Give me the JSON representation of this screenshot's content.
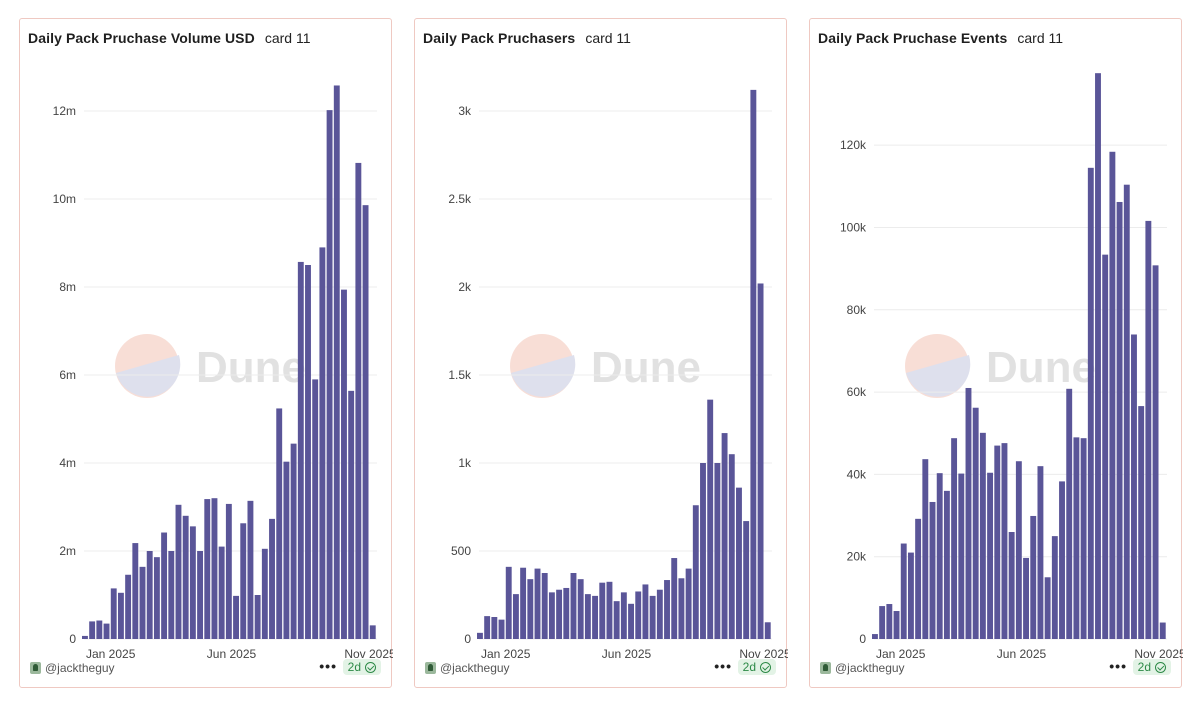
{
  "footer": {
    "author": "@jacktheguy",
    "age": "2d",
    "menu_label": "•••"
  },
  "watermark": {
    "text": "Dune"
  },
  "colors": {
    "bar": "#5a5598",
    "grid": "#ececec",
    "border": "#efc9c2",
    "badge_text": "#2d8a47"
  },
  "chart_data": [
    {
      "type": "bar",
      "title": "Daily Pack Pruchase Volume USD",
      "subtitle": "card 11",
      "x_tick_labels": [
        "Jan 2025",
        "Jun 2025",
        "Nov 2025"
      ],
      "y_ticks": [
        0,
        2000000,
        4000000,
        6000000,
        8000000,
        10000000,
        12000000
      ],
      "y_tick_labels": [
        "0",
        "2m",
        "4m",
        "6m",
        "8m",
        "10m",
        "12m"
      ],
      "ylim": [
        0,
        13000000
      ],
      "values": [
        70000,
        400000,
        420000,
        350000,
        1150000,
        1050000,
        1460000,
        2180000,
        1640000,
        2000000,
        1860000,
        2420000,
        2000000,
        3050000,
        2800000,
        2560000,
        2000000,
        3180000,
        3200000,
        2100000,
        3070000,
        980000,
        2630000,
        3140000,
        1000000,
        2050000,
        2730000,
        5240000,
        4030000,
        4440000,
        8570000,
        8500000,
        5900000,
        8900000,
        12020000,
        12580000,
        7940000,
        5640000,
        10820000,
        9860000,
        310000
      ]
    },
    {
      "type": "bar",
      "title": "Daily Pack Pruchasers",
      "subtitle": "card 11",
      "x_tick_labels": [
        "Jan 2025",
        "Jun 2025",
        "Nov 2025"
      ],
      "y_ticks": [
        0,
        500,
        1000,
        1500,
        2000,
        2500,
        3000
      ],
      "y_tick_labels": [
        "0",
        "500",
        "1k",
        "1.5k",
        "2k",
        "2.5k",
        "3k"
      ],
      "ylim": [
        0,
        3250
      ],
      "values": [
        35,
        130,
        125,
        110,
        410,
        255,
        405,
        340,
        400,
        375,
        265,
        280,
        290,
        375,
        340,
        255,
        245,
        320,
        325,
        215,
        265,
        200,
        270,
        310,
        245,
        280,
        335,
        460,
        345,
        400,
        760,
        1000,
        1360,
        1000,
        1170,
        1050,
        860,
        670,
        3120,
        2020,
        95
      ]
    },
    {
      "type": "bar",
      "title": "Daily Pack Pruchase Events",
      "subtitle": "card 11",
      "x_tick_labels": [
        "Jan 2025",
        "Jun 2025",
        "Nov 2025"
      ],
      "y_ticks": [
        0,
        20000,
        40000,
        60000,
        80000,
        100000,
        120000
      ],
      "y_tick_labels": [
        "0",
        "20k",
        "40k",
        "60k",
        "80k",
        "100k",
        "120k"
      ],
      "ylim": [
        0,
        139000
      ],
      "values": [
        1200,
        8000,
        8500,
        6800,
        23200,
        21000,
        29200,
        43700,
        33300,
        40300,
        36000,
        48800,
        40200,
        61000,
        56200,
        50100,
        40400,
        47000,
        47600,
        26000,
        43200,
        19700,
        29900,
        42000,
        15000,
        25000,
        38300,
        60800,
        49000,
        48800,
        114500,
        137500,
        93400,
        118400,
        106200,
        110400,
        74000,
        56600,
        101600,
        90800,
        4000
      ]
    }
  ]
}
